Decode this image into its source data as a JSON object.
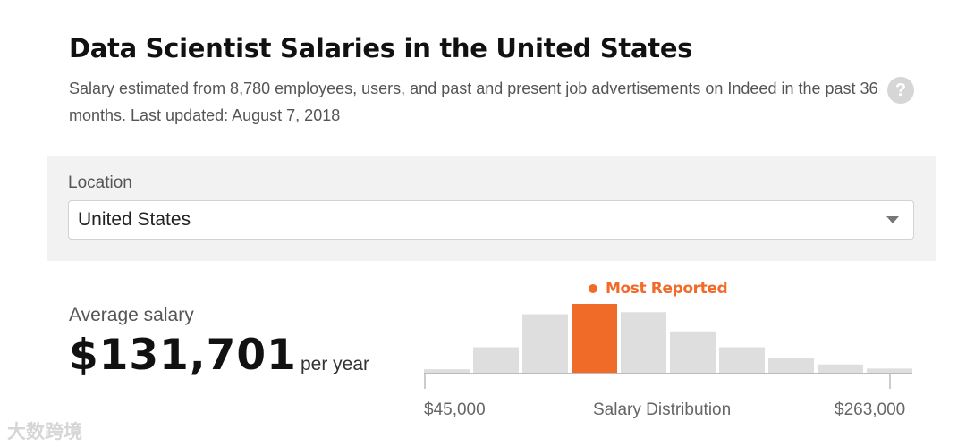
{
  "header": {
    "title": "Data Scientist Salaries in the United States",
    "subtitle": "Salary estimated from 8,780 employees, users, and past and present job advertisements on Indeed in the past 36 months. Last updated: August 7, 2018",
    "help_icon": "question-mark-icon",
    "help_glyph": "?"
  },
  "location": {
    "label": "Location",
    "selected": "United States",
    "dropdown_icon": "chevron-down-icon"
  },
  "average": {
    "label": "Average salary",
    "value": "$131,701",
    "unit": "per year"
  },
  "chart_data": {
    "type": "bar",
    "title": "Salary Distribution",
    "xlabel": "Salary Distribution",
    "tick_labels": [
      "$45,000",
      "$263,000"
    ],
    "x_range": [
      45000,
      263000
    ],
    "legend": "Most Reported",
    "highlight_index": 3,
    "relative_frequency": [
      0.05,
      0.37,
      0.85,
      1.0,
      0.88,
      0.6,
      0.37,
      0.22,
      0.12,
      0.06
    ],
    "colors": {
      "bar": "#dedede",
      "highlight": "#f06a28",
      "axis": "#bbbbbb"
    }
  },
  "watermark": "大数跨境"
}
